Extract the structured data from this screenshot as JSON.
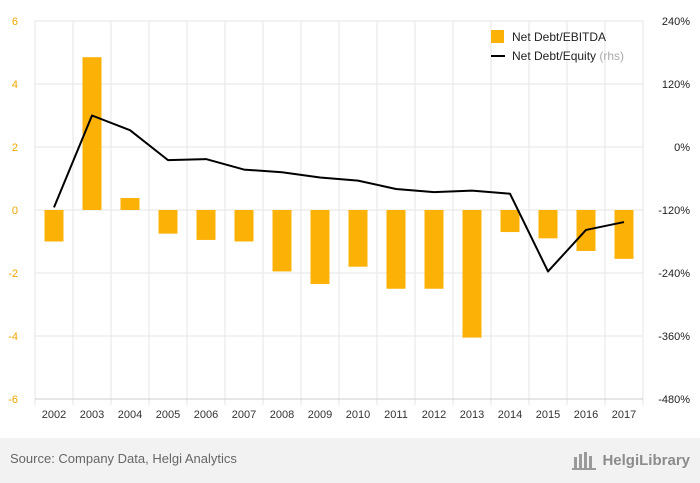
{
  "chart_data": {
    "type": "bar",
    "categories": [
      "2002",
      "2003",
      "2004",
      "2005",
      "2006",
      "2007",
      "2008",
      "2009",
      "2010",
      "2011",
      "2012",
      "2013",
      "2014",
      "2015",
      "2016",
      "2017"
    ],
    "series": [
      {
        "name": "Net Debt/EBITDA",
        "axis": "left",
        "type": "bar",
        "values": [
          -1.0,
          4.85,
          0.38,
          -0.75,
          -0.95,
          -1.0,
          -1.95,
          -2.35,
          -1.8,
          -2.5,
          -2.5,
          -4.05,
          -0.7,
          -0.9,
          -1.3,
          -1.55
        ]
      },
      {
        "name": "Net Debt/Equity",
        "name_suffix": "(rhs)",
        "axis": "right",
        "type": "line",
        "values": [
          -115,
          60,
          32,
          -25,
          -23,
          -43,
          -48,
          -58,
          -64,
          -80,
          -86,
          -83,
          -89,
          -237,
          -158,
          -143
        ]
      }
    ],
    "left_axis": {
      "ticks": [
        -6,
        -4,
        -2,
        0,
        2,
        4,
        6
      ],
      "labels": [
        "-6",
        "-4",
        "-2",
        "0",
        "2",
        "4",
        "6"
      ],
      "range": [
        -6,
        6
      ]
    },
    "right_axis": {
      "ticks": [
        -480,
        -360,
        -240,
        -120,
        0,
        120,
        240
      ],
      "labels": [
        "-480%",
        "-360%",
        "-240%",
        "-120%",
        "0%",
        "120%",
        "240%"
      ],
      "range": [
        -480,
        240
      ]
    },
    "grid": true,
    "legend_position": "top-right",
    "colors": {
      "bar": "#fcb106",
      "line": "#000000",
      "left_tick": "#f0a500",
      "right_tick": "#222222",
      "rhs_suffix": "#aaaaaa",
      "grid": "#e6e6e6"
    }
  },
  "footer": {
    "source": "Source: Company Data, Helgi Analytics",
    "logo_text": "HelgiLibrary",
    "logo_icon": "helgi-library-icon"
  }
}
